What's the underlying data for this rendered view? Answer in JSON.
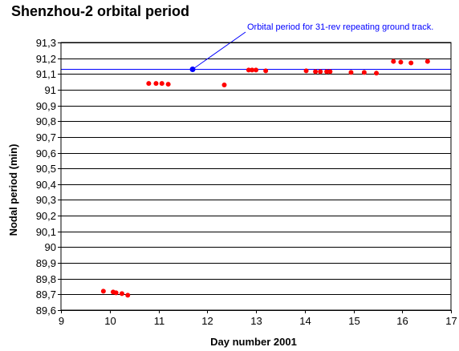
{
  "chart_data": {
    "type": "scatter",
    "title": "Shenzhou-2 orbital period",
    "xlabel": "Day number 2001",
    "ylabel": "Nodal period (min)",
    "xlim": [
      9,
      17
    ],
    "ylim": [
      89.6,
      91.3
    ],
    "x_ticks": [
      9,
      10,
      11,
      12,
      13,
      14,
      15,
      16,
      17
    ],
    "x_tick_labels": [
      "9",
      "10",
      "11",
      "12",
      "13",
      "14",
      "15",
      "16",
      "17"
    ],
    "y_ticks": [
      89.6,
      89.7,
      89.8,
      89.9,
      90.0,
      90.1,
      90.2,
      90.3,
      90.4,
      90.5,
      90.6,
      90.7,
      90.8,
      90.9,
      91.0,
      91.1,
      91.2,
      91.3
    ],
    "y_tick_labels": [
      "89,6",
      "89,7",
      "89,8",
      "89,9",
      "90",
      "90,1",
      "90,2",
      "90,3",
      "90,4",
      "90,5",
      "90,6",
      "90,7",
      "90,8",
      "90,9",
      "91",
      "91,1",
      "91,2",
      "91,3"
    ],
    "grid": {
      "horizontal": true,
      "vertical": false
    },
    "series": [
      {
        "color": "#ff0000",
        "points": [
          {
            "x": 9.87,
            "y": 89.72
          },
          {
            "x": 10.07,
            "y": 89.715
          },
          {
            "x": 10.13,
            "y": 89.71
          },
          {
            "x": 10.25,
            "y": 89.705
          },
          {
            "x": 10.37,
            "y": 89.695
          },
          {
            "x": 10.8,
            "y": 91.04
          },
          {
            "x": 10.95,
            "y": 91.04
          },
          {
            "x": 11.07,
            "y": 91.04
          },
          {
            "x": 11.2,
            "y": 91.035
          },
          {
            "x": 12.35,
            "y": 91.03
          },
          {
            "x": 12.85,
            "y": 91.125
          },
          {
            "x": 12.92,
            "y": 91.125
          },
          {
            "x": 13.0,
            "y": 91.125
          },
          {
            "x": 13.2,
            "y": 91.12
          },
          {
            "x": 14.03,
            "y": 91.12
          },
          {
            "x": 14.22,
            "y": 91.115
          },
          {
            "x": 14.32,
            "y": 91.115
          },
          {
            "x": 14.45,
            "y": 91.115
          },
          {
            "x": 14.52,
            "y": 91.115
          },
          {
            "x": 14.95,
            "y": 91.11
          },
          {
            "x": 15.22,
            "y": 91.11
          },
          {
            "x": 15.47,
            "y": 91.105
          },
          {
            "x": 15.82,
            "y": 91.18
          },
          {
            "x": 15.97,
            "y": 91.175
          },
          {
            "x": 16.18,
            "y": 91.17
          },
          {
            "x": 16.52,
            "y": 91.18
          }
        ]
      }
    ],
    "reference_line": {
      "y": 91.13,
      "color": "#0000ff",
      "label": "Orbital period for 31-rev repeating ground track.",
      "marker_x": 11.7
    }
  }
}
